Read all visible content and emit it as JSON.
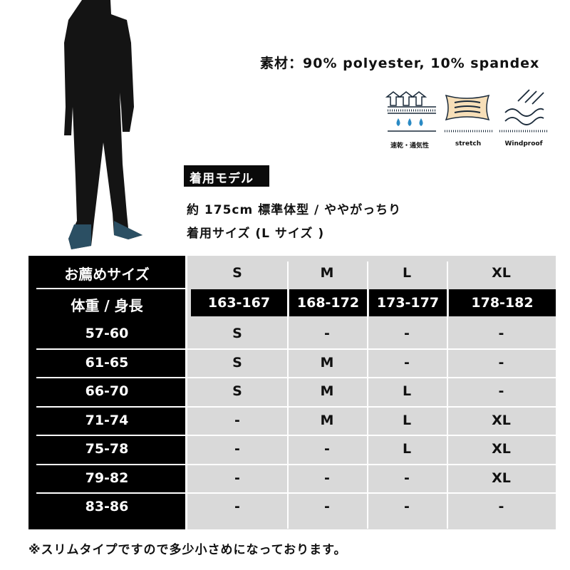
{
  "material": "素材：90% polyester, 10% spandex",
  "features": [
    {
      "icon": "quick-dry-breathable-icon",
      "label": "速乾・通気性"
    },
    {
      "icon": "stretch-icon",
      "label": "stretch"
    },
    {
      "icon": "windproof-icon",
      "label": "Windproof"
    }
  ],
  "model": {
    "tag": "着用モデル",
    "line1": "約 175cm 標準体型 / ややがっちり",
    "line2": "着用サイズ (L サイズ )"
  },
  "table": {
    "header_size": "お薦めサイズ",
    "header_weight_height": "体重 / 身長",
    "sizes": [
      "S",
      "M",
      "L",
      "XL"
    ],
    "heights": [
      "163-167",
      "168-172",
      "173-177",
      "178-182"
    ],
    "rows": [
      {
        "weight": "57-60",
        "values": [
          "S",
          "-",
          "-",
          "-"
        ]
      },
      {
        "weight": "61-65",
        "values": [
          "S",
          "M",
          "-",
          "-"
        ]
      },
      {
        "weight": "66-70",
        "values": [
          "S",
          "M",
          "L",
          "-"
        ]
      },
      {
        "weight": "71-74",
        "values": [
          "-",
          "M",
          "L",
          "XL"
        ]
      },
      {
        "weight": "75-78",
        "values": [
          "-",
          "-",
          "L",
          "XL"
        ]
      },
      {
        "weight": "79-82",
        "values": [
          "-",
          "-",
          "-",
          "XL"
        ]
      },
      {
        "weight": "83-86",
        "values": [
          "-",
          "-",
          "-",
          "-"
        ]
      }
    ]
  },
  "footnote": "※スリムタイプですので多少小さめになっております。",
  "colors": {
    "table_dark": "#000000",
    "table_light": "#d9d9d9",
    "drop_blue": "#2a8ac4",
    "stretch_fill": "#f7dfb8"
  }
}
